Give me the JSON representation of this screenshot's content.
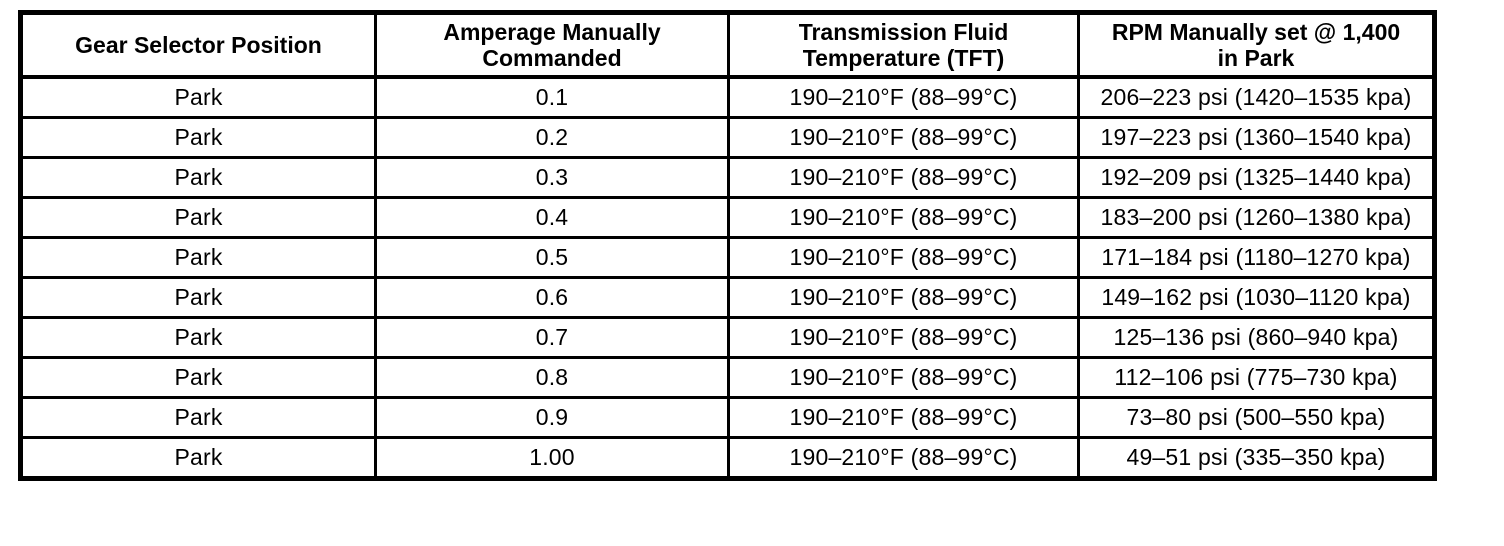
{
  "table": {
    "name": "transmission-pressure-spec-table",
    "headers": [
      "Gear Selector Position",
      "Amperage Manually Commanded",
      "Transmission Fluid Temperature (TFT)",
      "RPM Manually set @ 1,400 in Park"
    ],
    "rows": [
      {
        "cells": [
          "Park",
          "0.1",
          "190–210°F (88–99°C)",
          "206–223 psi (1420–1535 kpa)"
        ]
      },
      {
        "cells": [
          "Park",
          "0.2",
          "190–210°F (88–99°C)",
          "197–223 psi (1360–1540 kpa)"
        ]
      },
      {
        "cells": [
          "Park",
          "0.3",
          "190–210°F (88–99°C)",
          "192–209 psi (1325–1440 kpa)"
        ]
      },
      {
        "cells": [
          "Park",
          "0.4",
          "190–210°F (88–99°C)",
          "183–200 psi (1260–1380 kpa)"
        ]
      },
      {
        "cells": [
          "Park",
          "0.5",
          "190–210°F (88–99°C)",
          "171–184 psi (1180–1270 kpa)"
        ]
      },
      {
        "cells": [
          "Park",
          "0.6",
          "190–210°F (88–99°C)",
          "149–162 psi (1030–1120 kpa)"
        ]
      },
      {
        "cells": [
          "Park",
          "0.7",
          "190–210°F (88–99°C)",
          "125–136 psi (860–940 kpa)"
        ]
      },
      {
        "cells": [
          "Park",
          "0.8",
          "190–210°F (88–99°C)",
          "112–106 psi (775–730 kpa)"
        ]
      },
      {
        "cells": [
          "Park",
          "0.9",
          "190–210°F (88–99°C)",
          "73–80 psi (500–550 kpa)"
        ]
      },
      {
        "cells": [
          "Park",
          "1.00",
          "190–210°F (88–99°C)",
          "49–51 psi (335–350 kpa)"
        ]
      }
    ]
  },
  "colors": {
    "border": "#000000",
    "text": "#000000",
    "background": "#ffffff"
  }
}
